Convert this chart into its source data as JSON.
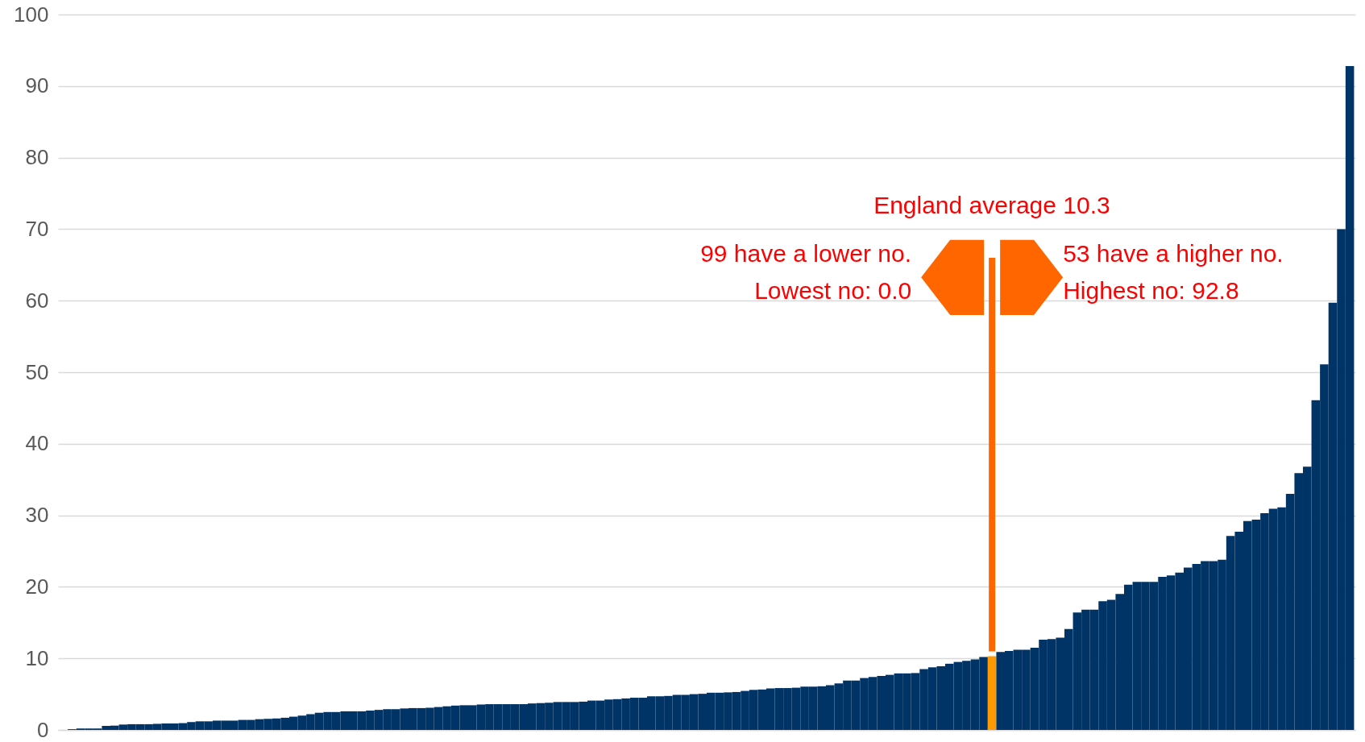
{
  "chart_data": {
    "type": "bar",
    "categories": [
      null,
      null,
      null,
      null,
      null,
      null,
      null,
      null,
      null,
      null,
      null,
      null,
      null,
      null,
      null,
      null,
      null,
      null,
      null,
      null,
      null,
      null,
      null,
      null,
      null,
      null,
      null,
      null,
      null,
      null,
      null,
      null,
      null,
      null,
      null,
      null,
      null,
      null,
      null,
      null,
      null,
      null,
      null,
      null,
      null,
      null,
      null,
      null,
      null,
      null,
      null,
      null,
      null,
      null,
      null,
      null,
      null,
      null,
      null,
      null,
      null,
      null,
      null,
      null,
      null,
      null,
      null,
      null,
      null,
      null,
      null,
      null,
      null,
      null,
      null,
      null,
      null,
      null,
      null,
      null,
      null,
      null,
      null,
      null,
      null,
      null,
      null,
      null,
      null,
      null,
      null,
      null,
      null,
      null,
      null,
      null,
      null,
      null,
      null,
      null,
      null,
      null,
      null,
      null,
      null,
      null,
      null,
      null,
      null,
      null,
      null,
      null,
      null,
      null,
      null,
      null,
      null,
      null,
      null,
      null,
      null,
      null,
      null,
      null,
      null,
      null,
      null,
      null,
      null,
      null,
      null,
      null,
      null,
      null,
      null,
      null,
      null,
      null,
      null,
      null,
      null,
      null,
      null,
      null,
      null,
      null,
      null,
      null,
      null,
      null,
      null,
      null
    ],
    "values": [
      0.0,
      0.1,
      0.2,
      0.2,
      0.2,
      0.55,
      0.6,
      0.75,
      0.8,
      0.8,
      0.8,
      0.85,
      0.9,
      0.9,
      0.95,
      1.1,
      1.2,
      1.2,
      1.3,
      1.3,
      1.3,
      1.4,
      1.4,
      1.5,
      1.55,
      1.6,
      1.7,
      1.85,
      2.0,
      2.2,
      2.4,
      2.5,
      2.5,
      2.6,
      2.6,
      2.6,
      2.7,
      2.8,
      2.9,
      2.9,
      3.0,
      3.05,
      3.05,
      3.1,
      3.2,
      3.3,
      3.4,
      3.45,
      3.45,
      3.55,
      3.6,
      3.6,
      3.6,
      3.6,
      3.6,
      3.7,
      3.75,
      3.8,
      3.9,
      3.9,
      3.9,
      3.95,
      4.1,
      4.1,
      4.25,
      4.3,
      4.4,
      4.5,
      4.5,
      4.7,
      4.7,
      4.75,
      4.9,
      4.9,
      5.0,
      5.05,
      5.2,
      5.2,
      5.25,
      5.3,
      5.45,
      5.6,
      5.65,
      5.8,
      5.85,
      5.85,
      5.9,
      6.05,
      6.05,
      6.1,
      6.25,
      6.5,
      6.9,
      6.9,
      7.25,
      7.4,
      7.55,
      7.7,
      7.9,
      7.9,
      7.95,
      8.5,
      8.75,
      8.9,
      9.25,
      9.5,
      9.65,
      9.85,
      10.2,
      10.3,
      10.9,
      11.05,
      11.2,
      11.2,
      11.5,
      12.6,
      12.7,
      12.9,
      14.1,
      16.4,
      16.8,
      16.8,
      18.0,
      18.2,
      19.0,
      20.3,
      20.7,
      20.7,
      20.7,
      21.4,
      21.6,
      22.0,
      22.7,
      23.2,
      23.6,
      23.6,
      23.8,
      27.1,
      27.7,
      29.2,
      29.4,
      30.3,
      30.9,
      31.1,
      33.0,
      35.9,
      36.8,
      46.1,
      51.1,
      59.7,
      70.0,
      92.8
    ],
    "colors": [
      "#003366",
      "#003366",
      "#003366",
      "#003366",
      "#003366",
      "#003366",
      "#003366",
      "#003366",
      "#003366",
      "#003366",
      "#003366",
      "#003366",
      "#003366",
      "#003366",
      "#003366",
      "#003366",
      "#003366",
      "#003366",
      "#003366",
      "#003366",
      "#003366",
      "#003366",
      "#003366",
      "#003366",
      "#003366",
      "#003366",
      "#003366",
      "#003366",
      "#003366",
      "#003366",
      "#003366",
      "#003366",
      "#003366",
      "#003366",
      "#003366",
      "#003366",
      "#003366",
      "#003366",
      "#003366",
      "#003366",
      "#003366",
      "#003366",
      "#003366",
      "#003366",
      "#003366",
      "#003366",
      "#003366",
      "#003366",
      "#003366",
      "#003366",
      "#003366",
      "#003366",
      "#003366",
      "#003366",
      "#003366",
      "#003366",
      "#003366",
      "#003366",
      "#003366",
      "#003366",
      "#003366",
      "#003366",
      "#003366",
      "#003366",
      "#003366",
      "#003366",
      "#003366",
      "#003366",
      "#003366",
      "#003366",
      "#003366",
      "#003366",
      "#003366",
      "#003366",
      "#003366",
      "#003366",
      "#003366",
      "#003366",
      "#003366",
      "#003366",
      "#003366",
      "#003366",
      "#003366",
      "#003366",
      "#003366",
      "#003366",
      "#003366",
      "#003366",
      "#003366",
      "#003366",
      "#003366",
      "#003366",
      "#003366",
      "#003366",
      "#003366",
      "#003366",
      "#003366",
      "#003366",
      "#003366",
      "#003366",
      "#003366",
      "#003366",
      "#003366",
      "#003366",
      "#003366",
      "#003366",
      "#003366",
      "#003366",
      "#003366",
      "#ff9900",
      "#003366",
      "#003366",
      "#003366",
      "#003366",
      "#003366",
      "#003366",
      "#003366",
      "#003366",
      "#003366",
      "#003366",
      "#003366",
      "#003366",
      "#003366",
      "#003366",
      "#003366",
      "#003366",
      "#003366",
      "#003366",
      "#003366",
      "#003366",
      "#003366",
      "#003366",
      "#003366",
      "#003366",
      "#003366",
      "#003366",
      "#003366",
      "#003366",
      "#003366",
      "#003366",
      "#003366",
      "#003366",
      "#003366",
      "#003366",
      "#003366",
      "#003366",
      "#003366",
      "#003366",
      "#003366",
      "#003366",
      "#003366",
      "#003366"
    ],
    "ylim": [
      0,
      100
    ],
    "yticks": [
      0,
      10,
      20,
      30,
      40,
      50,
      60,
      70,
      80,
      90,
      100
    ],
    "grid": "y",
    "tick_labels": "y",
    "annotations": [
      "England average 10.3",
      "99 have a lower no.",
      "Lowest no: 0.0",
      "53 have a higher no.",
      "Highest no: 92.8"
    ]
  }
}
